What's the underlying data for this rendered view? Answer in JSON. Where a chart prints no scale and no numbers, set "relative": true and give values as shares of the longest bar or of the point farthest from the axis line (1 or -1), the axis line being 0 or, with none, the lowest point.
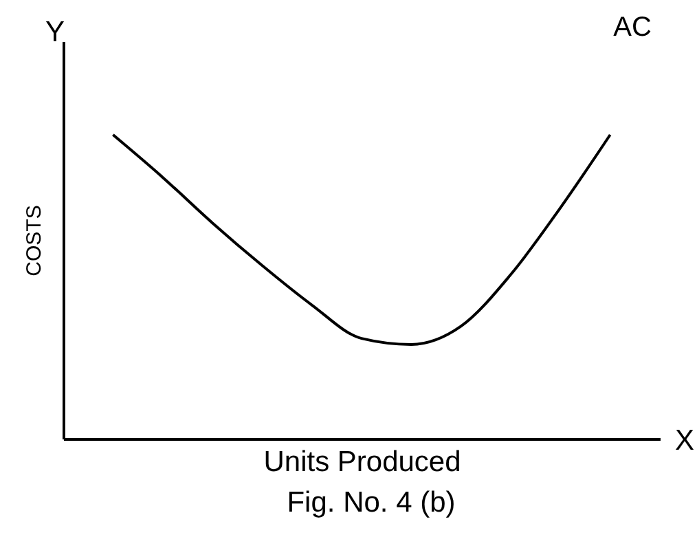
{
  "chart_data": {
    "type": "line",
    "relative": true,
    "xlabel": "Units Produced",
    "ylabel": "COSTS",
    "annotations": [
      "Y",
      "X",
      "Fig. No. 4 (b)"
    ],
    "categories": [
      null,
      null,
      null,
      null,
      null,
      null,
      null,
      null,
      null,
      null,
      null
    ],
    "series": [
      {
        "name": "AC",
        "color": "#000000",
        "values": [
          1,
          0.86,
          0.71,
          0.57,
          0.44,
          0.33,
          0.31,
          0.37,
          0.54,
          0.76,
          1
        ]
      }
    ],
    "grid": false,
    "legend": false,
    "marker": "none",
    "line_style": "solid"
  }
}
